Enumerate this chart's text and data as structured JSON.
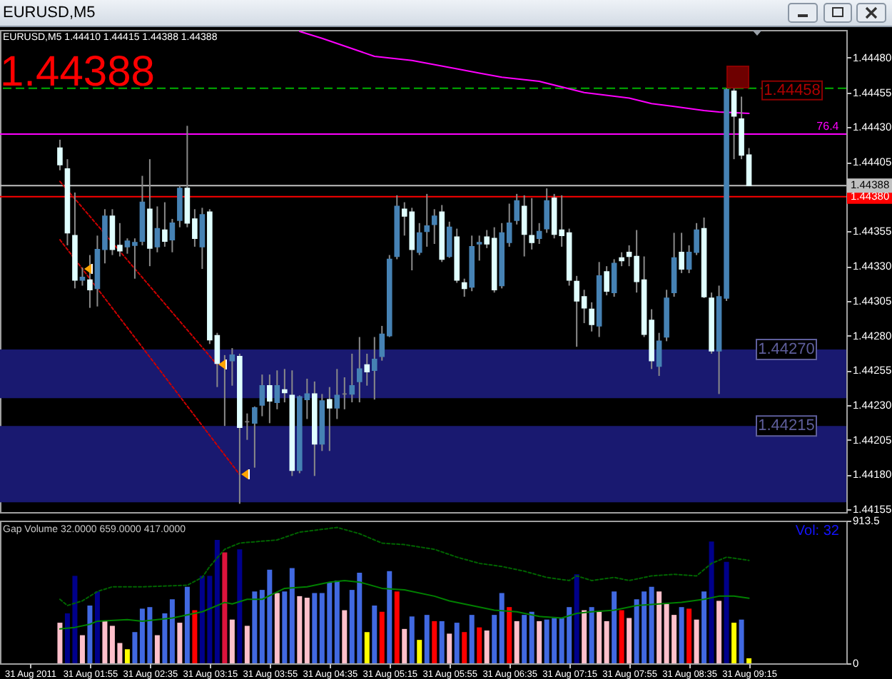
{
  "chart_data": [
    {
      "type": "candlestick",
      "title": "EURUSD,M5",
      "subtitle": "EURUSD,M5 1.44410 1.44415 1.44388 1.44388",
      "annotations": [
        "1.44388",
        {
          "text": "1.44458",
          "x": "2011-08-31T09:00",
          "y": 1.44458
        },
        {
          "text": "76.4",
          "x": "2011-08-31T10:15",
          "y": 1.44425
        }
      ],
      "x": [
        "2011-08-31T01:35",
        "2011-08-31T01:40",
        "2011-08-31T01:45",
        "2011-08-31T01:50",
        "2011-08-31T01:55",
        "2011-08-31T02:00",
        "2011-08-31T02:05",
        "2011-08-31T02:10",
        "2011-08-31T02:15",
        "2011-08-31T02:20",
        "2011-08-31T02:25",
        "2011-08-31T02:30",
        "2011-08-31T02:35",
        "2011-08-31T02:40",
        "2011-08-31T02:45",
        "2011-08-31T02:50",
        "2011-08-31T02:55",
        "2011-08-31T03:00",
        "2011-08-31T03:05",
        "2011-08-31T03:10",
        "2011-08-31T03:15",
        "2011-08-31T03:20",
        "2011-08-31T03:25",
        "2011-08-31T03:30",
        "2011-08-31T03:35",
        "2011-08-31T03:40",
        "2011-08-31T03:45",
        "2011-08-31T03:50",
        "2011-08-31T03:55",
        "2011-08-31T04:00",
        "2011-08-31T04:05",
        "2011-08-31T04:10",
        "2011-08-31T04:15",
        "2011-08-31T04:20",
        "2011-08-31T04:25",
        "2011-08-31T04:30",
        "2011-08-31T04:35",
        "2011-08-31T04:40",
        "2011-08-31T04:45",
        "2011-08-31T04:50",
        "2011-08-31T04:55",
        "2011-08-31T05:00",
        "2011-08-31T05:05",
        "2011-08-31T05:10",
        "2011-08-31T05:15",
        "2011-08-31T05:20",
        "2011-08-31T05:25",
        "2011-08-31T05:30",
        "2011-08-31T05:35",
        "2011-08-31T05:40",
        "2011-08-31T05:45",
        "2011-08-31T05:50",
        "2011-08-31T05:55",
        "2011-08-31T06:00",
        "2011-08-31T06:05",
        "2011-08-31T06:10",
        "2011-08-31T06:15",
        "2011-08-31T06:20",
        "2011-08-31T06:25",
        "2011-08-31T06:30",
        "2011-08-31T06:35",
        "2011-08-31T06:40",
        "2011-08-31T06:45",
        "2011-08-31T06:50",
        "2011-08-31T06:55",
        "2011-08-31T07:00",
        "2011-08-31T07:05",
        "2011-08-31T07:10",
        "2011-08-31T07:15",
        "2011-08-31T07:20",
        "2011-08-31T07:25",
        "2011-08-31T07:30",
        "2011-08-31T07:35",
        "2011-08-31T07:40",
        "2011-08-31T07:45",
        "2011-08-31T07:50",
        "2011-08-31T07:55",
        "2011-08-31T08:00",
        "2011-08-31T08:05",
        "2011-08-31T08:10",
        "2011-08-31T08:15",
        "2011-08-31T08:20",
        "2011-08-31T08:25",
        "2011-08-31T08:30",
        "2011-08-31T08:35",
        "2011-08-31T08:40",
        "2011-08-31T08:45",
        "2011-08-31T08:50",
        "2011-08-31T08:55",
        "2011-08-31T09:00",
        "2011-08-31T09:05",
        "2011-08-31T09:10",
        "2011-08-31T09:15"
      ],
      "ohlc": [
        [
          1.44415,
          1.44421,
          1.44399,
          1.44403
        ],
        [
          1.444,
          1.44407,
          1.44345,
          1.44354
        ],
        [
          1.44352,
          1.44383,
          1.44314,
          1.4432
        ],
        [
          1.4432,
          1.44329,
          1.44316,
          1.44322
        ],
        [
          1.4432,
          1.44338,
          1.443,
          1.44313
        ],
        [
          1.44314,
          1.44352,
          1.44301,
          1.44342
        ],
        [
          1.44342,
          1.44371,
          1.44332,
          1.44366
        ],
        [
          1.44366,
          1.44371,
          1.44338,
          1.44342
        ],
        [
          1.44345,
          1.44361,
          1.44337,
          1.44341
        ],
        [
          1.44344,
          1.4435,
          1.44339,
          1.44348
        ],
        [
          1.44345,
          1.4435,
          1.44321,
          1.44347
        ],
        [
          1.44348,
          1.44395,
          1.44345,
          1.44376
        ],
        [
          1.44371,
          1.44407,
          1.4433,
          1.44343
        ],
        [
          1.44344,
          1.44373,
          1.4434,
          1.44357
        ],
        [
          1.44356,
          1.44376,
          1.44344,
          1.44348
        ],
        [
          1.44349,
          1.44364,
          1.4434,
          1.44361
        ],
        [
          1.44363,
          1.44388,
          1.44358,
          1.44386
        ],
        [
          1.44386,
          1.44431,
          1.44358,
          1.44361
        ],
        [
          1.44364,
          1.44371,
          1.44344,
          1.4435
        ],
        [
          1.44344,
          1.44372,
          1.44328,
          1.44367
        ],
        [
          1.44369,
          1.44371,
          1.44274,
          1.44277
        ],
        [
          1.4428,
          1.44282,
          1.44243,
          1.4426
        ],
        [
          1.44261,
          1.44266,
          1.44215,
          1.44261
        ],
        [
          1.44262,
          1.44271,
          1.44244,
          1.44266
        ],
        [
          1.44265,
          1.44267,
          1.44159,
          1.44214
        ],
        [
          1.44218,
          1.44224,
          1.44205,
          1.44218
        ],
        [
          1.44217,
          1.44229,
          1.44185,
          1.44228
        ],
        [
          1.4423,
          1.44252,
          1.44222,
          1.44244
        ],
        [
          1.44244,
          1.44252,
          1.44217,
          1.44233
        ],
        [
          1.44232,
          1.44255,
          1.44227,
          1.44244
        ],
        [
          1.44241,
          1.44256,
          1.44232,
          1.44239
        ],
        [
          1.44237,
          1.44255,
          1.44179,
          1.44183
        ],
        [
          1.44183,
          1.44237,
          1.44181,
          1.44236
        ],
        [
          1.44234,
          1.44249,
          1.4422,
          1.44238
        ],
        [
          1.44238,
          1.44247,
          1.44179,
          1.44202
        ],
        [
          1.44202,
          1.44238,
          1.44197,
          1.44233
        ],
        [
          1.44234,
          1.44243,
          1.44197,
          1.44228
        ],
        [
          1.44228,
          1.44256,
          1.4422,
          1.44237
        ],
        [
          1.44238,
          1.4425,
          1.44227,
          1.44238
        ],
        [
          1.44238,
          1.44267,
          1.44232,
          1.44244
        ],
        [
          1.44247,
          1.44279,
          1.44232,
          1.44256
        ],
        [
          1.44259,
          1.44267,
          1.44244,
          1.44254
        ],
        [
          1.44255,
          1.44279,
          1.44234,
          1.44263
        ],
        [
          1.44265,
          1.44287,
          1.44262,
          1.44281
        ],
        [
          1.4428,
          1.44338,
          1.44279,
          1.44335
        ],
        [
          1.44337,
          1.44381,
          1.44335,
          1.44373
        ],
        [
          1.44371,
          1.44376,
          1.44352,
          1.44366
        ],
        [
          1.44369,
          1.44372,
          1.44327,
          1.44342
        ],
        [
          1.4434,
          1.44361,
          1.44338,
          1.44354
        ],
        [
          1.44355,
          1.44382,
          1.44344,
          1.44359
        ],
        [
          1.4436,
          1.44371,
          1.44346,
          1.44366
        ],
        [
          1.44369,
          1.44374,
          1.44333,
          1.44335
        ],
        [
          1.44337,
          1.44362,
          1.44336,
          1.44358
        ],
        [
          1.44351,
          1.44357,
          1.44318,
          1.4432
        ],
        [
          1.44318,
          1.44321,
          1.44308,
          1.44314
        ],
        [
          1.44315,
          1.44352,
          1.44312,
          1.44344
        ],
        [
          1.44346,
          1.44352,
          1.44334,
          1.44347
        ],
        [
          1.44351,
          1.44356,
          1.44343,
          1.44346
        ],
        [
          1.4435,
          1.44358,
          1.44311,
          1.44313
        ],
        [
          1.44316,
          1.44361,
          1.44314,
          1.44354
        ],
        [
          1.44347,
          1.44375,
          1.44344,
          1.44361
        ],
        [
          1.44363,
          1.44382,
          1.4436,
          1.44377
        ],
        [
          1.44373,
          1.44381,
          1.44337,
          1.44353
        ],
        [
          1.44352,
          1.44379,
          1.44342,
          1.44347
        ],
        [
          1.4435,
          1.44361,
          1.44346,
          1.44355
        ],
        [
          1.44357,
          1.44386,
          1.44354,
          1.44377
        ],
        [
          1.44379,
          1.44382,
          1.4435,
          1.44353
        ],
        [
          1.44356,
          1.44381,
          1.44344,
          1.44352
        ],
        [
          1.44354,
          1.44357,
          1.44316,
          1.4432
        ],
        [
          1.44319,
          1.44323,
          1.44272,
          1.44305
        ],
        [
          1.44308,
          1.44313,
          1.44289,
          1.443
        ],
        [
          1.44299,
          1.44304,
          1.44283,
          1.44288
        ],
        [
          1.44287,
          1.44333,
          1.44279,
          1.44323
        ],
        [
          1.44326,
          1.4433,
          1.44309,
          1.44312
        ],
        [
          1.44311,
          1.44335,
          1.44308,
          1.44332
        ],
        [
          1.44336,
          1.4434,
          1.4433,
          1.44334
        ],
        [
          1.4434,
          1.44345,
          1.4433,
          1.44337
        ],
        [
          1.44337,
          1.44356,
          1.44311,
          1.44319
        ],
        [
          1.4432,
          1.44337,
          1.44279,
          1.44281
        ],
        [
          1.44291,
          1.44299,
          1.44256,
          1.44262
        ],
        [
          1.44258,
          1.44282,
          1.44251,
          1.44276
        ],
        [
          1.44279,
          1.44313,
          1.44276,
          1.44307
        ],
        [
          1.44311,
          1.44354,
          1.44308,
          1.44336
        ],
        [
          1.4434,
          1.44354,
          1.44325,
          1.44328
        ],
        [
          1.44328,
          1.44345,
          1.44325,
          1.4434
        ],
        [
          1.4434,
          1.44361,
          1.44338,
          1.44356
        ],
        [
          1.44357,
          1.44365,
          1.44307,
          1.44308
        ],
        [
          1.44307,
          1.44311,
          1.44267,
          1.44269
        ],
        [
          1.44269,
          1.44316,
          1.44238,
          1.44308
        ],
        [
          1.44307,
          1.44458,
          1.44305,
          1.44457
        ],
        [
          1.44456,
          1.4446,
          1.44407,
          1.44438
        ],
        [
          1.44436,
          1.44452,
          1.44407,
          1.4441
        ],
        [
          1.4441,
          1.44415,
          1.44388,
          1.44388
        ]
      ],
      "colors": [
        "#e0ffff",
        "#e0ffff",
        "#e0ffff",
        "#4682b4",
        "#e0ffff",
        "#4682b4",
        "#4682b4",
        "#e0ffff",
        "#e0ffff",
        "#4682b4",
        "#4682b4",
        "#4682b4",
        "#e0ffff",
        "#4682b4",
        "#e0ffff",
        "#4682b4",
        "#4682b4",
        "#e0ffff",
        "#e0ffff",
        "#4682b4",
        "#e0ffff",
        "#e0ffff",
        "#808080",
        "#4682b4",
        "#e0ffff",
        "#808080",
        "#4682b4",
        "#4682b4",
        "#e0ffff",
        "#4682b4",
        "#e0ffff",
        "#e0ffff",
        "#4682b4",
        "#4682b4",
        "#e0ffff",
        "#4682b4",
        "#e0ffff",
        "#4682b4",
        "#808080",
        "#4682b4",
        "#4682b4",
        "#e0ffff",
        "#4682b4",
        "#4682b4",
        "#4682b4",
        "#4682b4",
        "#e0ffff",
        "#e0ffff",
        "#4682b4",
        "#4682b4",
        "#4682b4",
        "#e0ffff",
        "#4682b4",
        "#e0ffff",
        "#e0ffff",
        "#4682b4",
        "#4682b4",
        "#e0ffff",
        "#e0ffff",
        "#4682b4",
        "#4682b4",
        "#4682b4",
        "#e0ffff",
        "#e0ffff",
        "#4682b4",
        "#4682b4",
        "#e0ffff",
        "#e0ffff",
        "#e0ffff",
        "#e0ffff",
        "#e0ffff",
        "#e0ffff",
        "#4682b4",
        "#e0ffff",
        "#4682b4",
        "#e0ffff",
        "#e0ffff",
        "#e0ffff",
        "#e0ffff",
        "#e0ffff",
        "#4682b4",
        "#4682b4",
        "#4682b4",
        "#e0ffff",
        "#4682b4",
        "#4682b4",
        "#e0ffff",
        "#e0ffff",
        "#4682b4",
        "#4682b4",
        "#e0ffff",
        "#e0ffff",
        "#e0ffff"
      ],
      "series": [
        {
          "type": "line",
          "color": "#ff00ff",
          "x": [
            "2011-08-31T04:15",
            "2011-08-31T04:30",
            "2011-08-31T05:05",
            "2011-08-31T05:30",
            "2011-08-31T06:00",
            "2011-08-31T06:15",
            "2011-08-31T06:30",
            "2011-08-31T06:55",
            "2011-08-31T07:25",
            "2011-08-31T07:55",
            "2011-08-31T08:10",
            "2011-08-31T08:25",
            "2011-08-31T08:45",
            "2011-08-31T08:55",
            "2011-08-31T09:15"
          ],
          "values": [
            1.44499,
            1.44494,
            1.44481,
            1.44478,
            1.44472,
            1.44469,
            1.44466,
            1.44463,
            1.44455,
            1.44451,
            1.44447,
            1.44445,
            1.44442,
            1.44441,
            1.4444
          ]
        },
        {
          "type": "line",
          "color": "#cc0000",
          "line_style": "dotted",
          "x": [
            "2011-08-31T01:35",
            "2011-08-31T01:50",
            "2011-08-31T03:35"
          ],
          "values": [
            1.44349,
            1.44328,
            1.4418
          ]
        },
        {
          "type": "line",
          "color": "#cc0000",
          "line_style": "dotted",
          "x": [
            "2011-08-31T01:35",
            "2011-08-31T03:20"
          ],
          "values": [
            1.44391,
            1.44259
          ]
        }
      ],
      "ref_lines": [
        {
          "axis": "y",
          "value": 1.4438,
          "label": "1.44380",
          "color": "#ff0000"
        },
        {
          "axis": "y",
          "value": 1.44388,
          "label": "1.44388",
          "color": "#c0c0c0"
        },
        {
          "axis": "y",
          "value": 1.44425,
          "color": "#ff00ff"
        },
        {
          "axis": "y",
          "value": 1.44458,
          "color": "#00b000",
          "line_style": "dashed"
        }
      ],
      "bands": [
        {
          "axis": "y",
          "from": 1.4416,
          "to": 1.44215,
          "label": "1.44215",
          "color": "#191970"
        },
        {
          "axis": "y",
          "from": 1.44235,
          "to": 1.4427,
          "label": "1.44270",
          "color": "#191970"
        }
      ],
      "xlim": [
        "2011-08-31T00:55",
        "2011-08-31T10:20"
      ],
      "ylim": [
        1.44153,
        1.445
      ],
      "yticks": [
        1.44155,
        {
          "value": 1.4418,
          "label": "1.44180"
        },
        1.44205,
        {
          "value": 1.4423,
          "label": "1.44230"
        },
        1.44255,
        {
          "value": 1.4428,
          "label": "1.44280"
        },
        1.44305,
        {
          "value": 1.4433,
          "label": "1.44330"
        },
        1.44355,
        1.44405,
        {
          "value": 1.4443,
          "label": "1.44430"
        },
        1.44455,
        {
          "value": 1.4448,
          "label": "1.44480"
        }
      ],
      "tick_labels": "y"
    },
    {
      "type": "bar",
      "title": "Gap Volume 32.0000 659.0000 417.0000",
      "annotations": [
        "Vol: 32"
      ],
      "x": [
        "2011-08-31T01:35",
        "2011-08-31T01:40",
        "2011-08-31T01:45",
        "2011-08-31T01:50",
        "2011-08-31T01:55",
        "2011-08-31T02:00",
        "2011-08-31T02:05",
        "2011-08-31T02:10",
        "2011-08-31T02:15",
        "2011-08-31T02:20",
        "2011-08-31T02:25",
        "2011-08-31T02:30",
        "2011-08-31T02:35",
        "2011-08-31T02:40",
        "2011-08-31T02:45",
        "2011-08-31T02:50",
        "2011-08-31T02:55",
        "2011-08-31T03:00",
        "2011-08-31T03:05",
        "2011-08-31T03:10",
        "2011-08-31T03:15",
        "2011-08-31T03:20",
        "2011-08-31T03:25",
        "2011-08-31T03:30",
        "2011-08-31T03:35",
        "2011-08-31T03:40",
        "2011-08-31T03:45",
        "2011-08-31T03:50",
        "2011-08-31T03:55",
        "2011-08-31T04:00",
        "2011-08-31T04:05",
        "2011-08-31T04:10",
        "2011-08-31T04:15",
        "2011-08-31T04:20",
        "2011-08-31T04:25",
        "2011-08-31T04:30",
        "2011-08-31T04:35",
        "2011-08-31T04:40",
        "2011-08-31T04:45",
        "2011-08-31T04:50",
        "2011-08-31T04:55",
        "2011-08-31T05:00",
        "2011-08-31T05:05",
        "2011-08-31T05:10",
        "2011-08-31T05:15",
        "2011-08-31T05:20",
        "2011-08-31T05:25",
        "2011-08-31T05:30",
        "2011-08-31T05:35",
        "2011-08-31T05:40",
        "2011-08-31T05:45",
        "2011-08-31T05:50",
        "2011-08-31T05:55",
        "2011-08-31T06:00",
        "2011-08-31T06:05",
        "2011-08-31T06:10",
        "2011-08-31T06:15",
        "2011-08-31T06:20",
        "2011-08-31T06:25",
        "2011-08-31T06:30",
        "2011-08-31T06:35",
        "2011-08-31T06:40",
        "2011-08-31T06:45",
        "2011-08-31T06:50",
        "2011-08-31T06:55",
        "2011-08-31T07:00",
        "2011-08-31T07:05",
        "2011-08-31T07:10",
        "2011-08-31T07:15",
        "2011-08-31T07:20",
        "2011-08-31T07:25",
        "2011-08-31T07:30",
        "2011-08-31T07:35",
        "2011-08-31T07:40",
        "2011-08-31T07:45",
        "2011-08-31T07:50",
        "2011-08-31T07:55",
        "2011-08-31T08:00",
        "2011-08-31T08:05",
        "2011-08-31T08:10",
        "2011-08-31T08:15",
        "2011-08-31T08:20",
        "2011-08-31T08:25",
        "2011-08-31T08:30",
        "2011-08-31T08:35",
        "2011-08-31T08:40",
        "2011-08-31T08:45",
        "2011-08-31T08:50",
        "2011-08-31T08:55",
        "2011-08-31T09:00",
        "2011-08-31T09:05",
        "2011-08-31T09:10",
        "2011-08-31T09:15"
      ],
      "series": [
        {
          "type": "bar",
          "colors": [
            "#ffc0cb",
            "#00008b",
            "#00008b",
            "#ffc0cb",
            "#4169e1",
            "#00008b",
            "#ffc0cb",
            "#ffc0cb",
            "#ffc0cb",
            "#ffff00",
            "#4169e1",
            "#4169e1",
            "#4169e1",
            "#ffc0cb",
            "#4169e1",
            "#4169e1",
            "#ffc0cb",
            "#4169e1",
            "#ff0000",
            "#00008b",
            "#00008b",
            "#00008b",
            "#dc143c",
            "#ffc0cb",
            "#00008b",
            "#ffc0cb",
            "#4169e1",
            "#4169e1",
            "#4169e1",
            "#ffc0cb",
            "#4169e1",
            "#4169e1",
            "#ffc0cb",
            "#ffc0cb",
            "#4169e1",
            "#4169e1",
            "#4169e1",
            "#4169e1",
            "#ffc0cb",
            "#4169e1",
            "#4169e1",
            "#ffff00",
            "#4169e1",
            "#ff0000",
            "#4169e1",
            "#ff0000",
            "#ffc0cb",
            "#4169e1",
            "#ffff00",
            "#4169e1",
            "#ff0000",
            "#4169e1",
            "#ffc0cb",
            "#4169e1",
            "#ff0000",
            "#4169e1",
            "#ff0000",
            "#ffc0cb",
            "#4169e1",
            "#4169e1",
            "#ff0000",
            "#ffc0cb",
            "#4169e1",
            "#4169e1",
            "#ffc0cb",
            "#4169e1",
            "#4169e1",
            "#4169e1",
            "#4169e1",
            "#00008b",
            "#ffc0cb",
            "#4169e1",
            "#ffc0cb",
            "#ffc0cb",
            "#4169e1",
            "#ff0000",
            "#ffc0cb",
            "#4169e1",
            "#4169e1",
            "#4169e1",
            "#ffc0cb",
            "#ffc0cb",
            "#ffc0cb",
            "#4169e1",
            "#ff0000",
            "#ffc0cb",
            "#4169e1",
            "#00008b",
            "#ffc0cb",
            "#00008b",
            "#ffff00",
            "#4169e1",
            "#ffff00"
          ],
          "values": [
            260,
            320,
            560,
            180,
            370,
            460,
            270,
            240,
            130,
            90,
            200,
            350,
            360,
            180,
            320,
            410,
            260,
            490,
            340,
            560,
            560,
            790,
            710,
            280,
            730,
            240,
            460,
            470,
            600,
            450,
            460,
            610,
            430,
            420,
            450,
            450,
            520,
            530,
            340,
            470,
            580,
            200,
            370,
            330,
            590,
            460,
            220,
            300,
            150,
            310,
            270,
            270,
            190,
            260,
            200,
            310,
            230,
            210,
            310,
            450,
            360,
            270,
            310,
            330,
            270,
            280,
            290,
            290,
            360,
            570,
            340,
            360,
            330,
            270,
            460,
            340,
            290,
            410,
            460,
            490,
            460,
            380,
            310,
            360,
            350,
            280,
            460,
            780,
            400,
            650,
            260,
            280,
            32
          ]
        },
        {
          "type": "line",
          "color": "#006400",
          "line_style": "dotted",
          "x": [
            "2011-08-31T01:35",
            "2011-08-31T01:40",
            "2011-08-31T01:50",
            "2011-08-31T02:00",
            "2011-08-31T02:10",
            "2011-08-31T02:30",
            "2011-08-31T03:00",
            "2011-08-31T03:10",
            "2011-08-31T03:15",
            "2011-08-31T03:25",
            "2011-08-31T03:35",
            "2011-08-31T04:00",
            "2011-08-31T04:15",
            "2011-08-31T04:40",
            "2011-08-31T04:55",
            "2011-08-31T05:10",
            "2011-08-31T05:25",
            "2011-08-31T05:45",
            "2011-08-31T06:00",
            "2011-08-31T06:15",
            "2011-08-31T06:30",
            "2011-08-31T06:45",
            "2011-08-31T07:00",
            "2011-08-31T07:15",
            "2011-08-31T07:20",
            "2011-08-31T07:30",
            "2011-08-31T07:45",
            "2011-08-31T07:55",
            "2011-08-31T08:10",
            "2011-08-31T08:25",
            "2011-08-31T08:40",
            "2011-08-31T08:50",
            "2011-08-31T09:00",
            "2011-08-31T09:15"
          ],
          "values": [
            410,
            370,
            400,
            460,
            490,
            490,
            500,
            550,
            620,
            730,
            770,
            790,
            840,
            870,
            830,
            770,
            760,
            730,
            680,
            640,
            620,
            590,
            550,
            530,
            560,
            530,
            550,
            530,
            560,
            570,
            560,
            640,
            680,
            659
          ]
        },
        {
          "type": "line",
          "color": "#008000",
          "x": [
            "2011-08-31T01:35",
            "2011-08-31T01:45",
            "2011-08-31T01:55",
            "2011-08-31T02:00",
            "2011-08-31T02:20",
            "2011-08-31T02:30",
            "2011-08-31T02:50",
            "2011-08-31T03:10",
            "2011-08-31T03:25",
            "2011-08-31T03:30",
            "2011-08-31T03:40",
            "2011-08-31T03:50",
            "2011-08-31T04:05",
            "2011-08-31T04:20",
            "2011-08-31T04:35",
            "2011-08-31T04:45",
            "2011-08-31T04:55",
            "2011-08-31T05:10",
            "2011-08-31T05:25",
            "2011-08-31T05:45",
            "2011-08-31T05:55",
            "2011-08-31T06:10",
            "2011-08-31T06:25",
            "2011-08-31T06:40",
            "2011-08-31T06:55",
            "2011-08-31T07:10",
            "2011-08-31T07:20",
            "2011-08-31T07:30",
            "2011-08-31T07:45",
            "2011-08-31T08:00",
            "2011-08-31T08:15",
            "2011-08-31T08:30",
            "2011-08-31T08:45",
            "2011-08-31T08:55",
            "2011-08-31T09:05",
            "2011-08-31T09:15"
          ],
          "values": [
            220,
            230,
            250,
            270,
            280,
            270,
            290,
            330,
            390,
            380,
            410,
            410,
            480,
            490,
            520,
            530,
            520,
            480,
            470,
            430,
            400,
            370,
            340,
            330,
            300,
            290,
            320,
            330,
            340,
            370,
            380,
            390,
            410,
            430,
            430,
            417
          ]
        }
      ],
      "xlim": [
        "2011-08-31T00:55",
        "2011-08-31T10:20"
      ],
      "ylim": [
        0,
        913.5
      ],
      "yticks": [
        0,
        913.5
      ],
      "xticks": [
        {
          "value": "2011-08-31T01:15",
          "label": "31 Aug 2011"
        },
        {
          "value": "2011-08-31T01:55",
          "label": "31 Aug 01:55"
        },
        {
          "value": "2011-08-31T02:35",
          "label": "31 Aug 02:35"
        },
        {
          "value": "2011-08-31T03:15",
          "label": "31 Aug 03:15"
        },
        {
          "value": "2011-08-31T03:55",
          "label": "31 Aug 03:55"
        },
        {
          "value": "2011-08-31T04:35",
          "label": "31 Aug 04:35"
        },
        {
          "value": "2011-08-31T05:15",
          "label": "31 Aug 05:15"
        },
        {
          "value": "2011-08-31T05:55",
          "label": "31 Aug 05:55"
        },
        {
          "value": "2011-08-31T06:35",
          "label": "31 Aug 06:35"
        },
        {
          "value": "2011-08-31T07:15",
          "label": "31 Aug 07:15"
        },
        {
          "value": "2011-08-31T07:55",
          "label": "31 Aug 07:55"
        },
        {
          "value": "2011-08-31T08:35",
          "label": "31 Aug 08:35"
        },
        {
          "value": "2011-08-31T09:15",
          "label": "31 Aug 09:15"
        }
      ]
    }
  ]
}
